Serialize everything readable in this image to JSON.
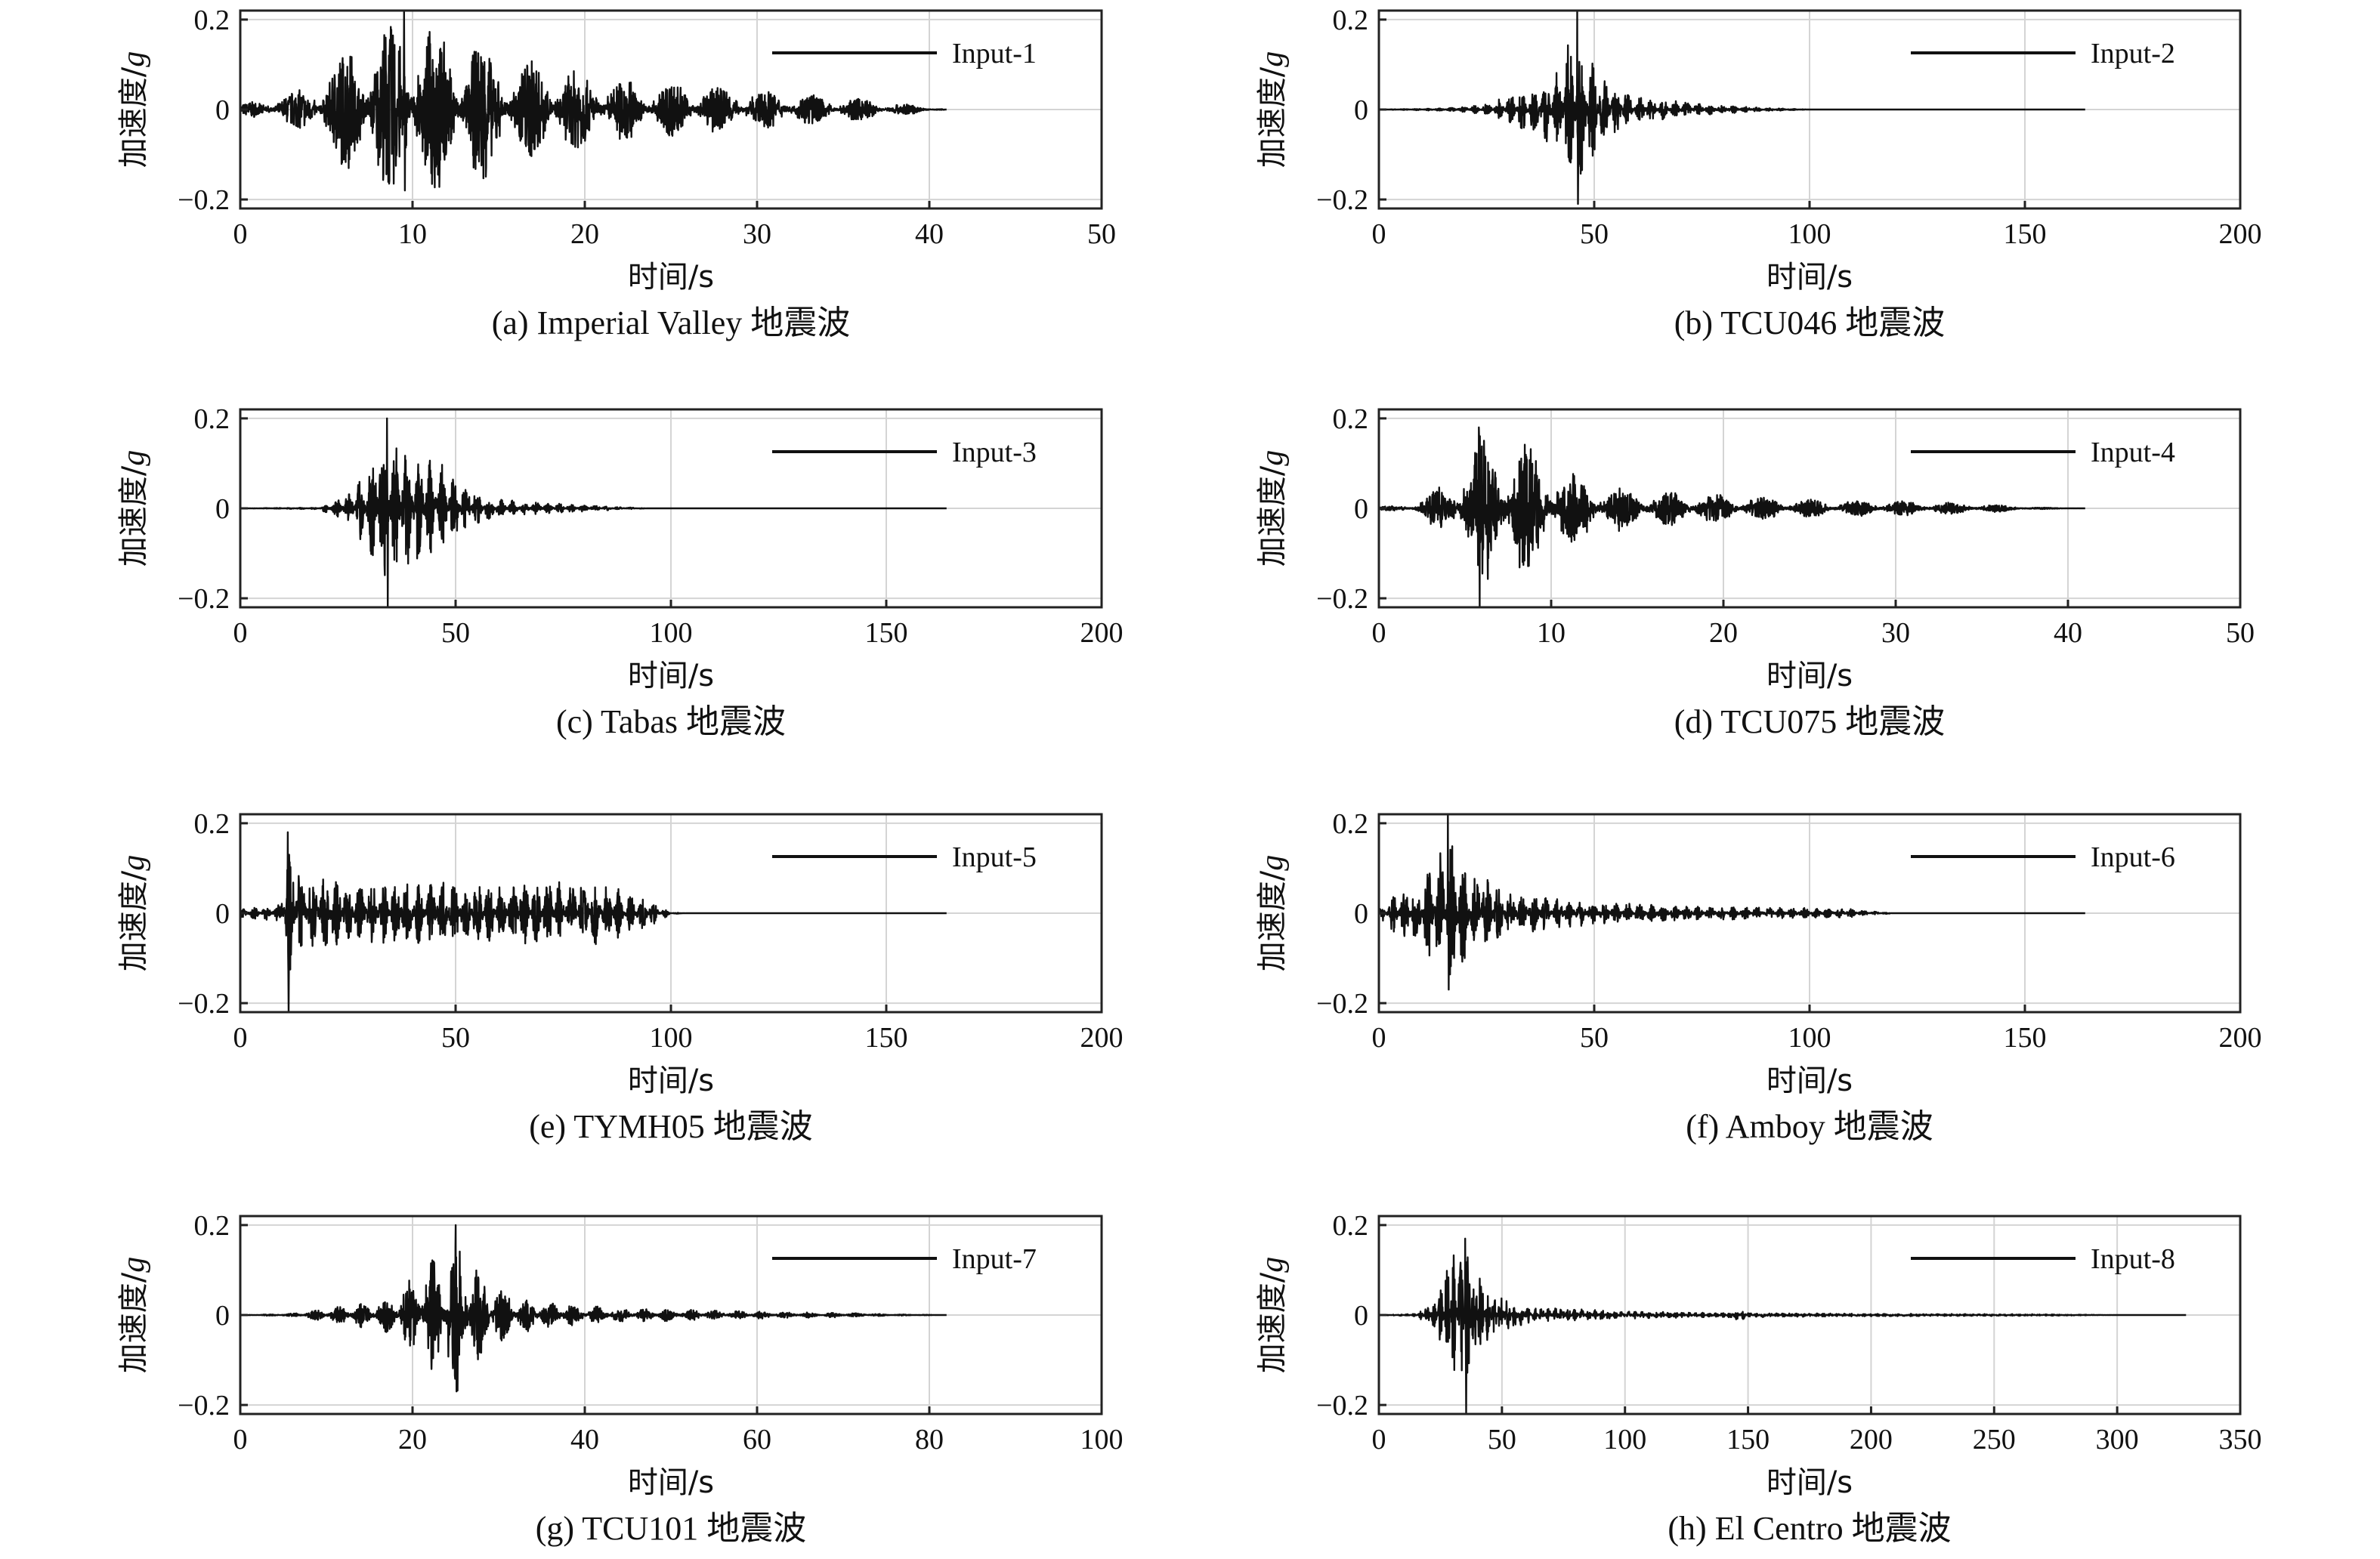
{
  "figure": {
    "y_label_prefix": "加速度/",
    "y_label_unit": "g",
    "x_label": "时间/s"
  },
  "chart_data": [
    {
      "type": "line",
      "caption": "(a) Imperial Valley 地震波",
      "legend": "Input-1",
      "xlabel": "时间/s",
      "ylabel": "加速度/g",
      "xlim": [
        0,
        50
      ],
      "ylim": [
        -0.22,
        0.22
      ],
      "xticks": [
        0,
        10,
        20,
        30,
        40,
        50
      ],
      "yticks": [
        -0.2,
        0,
        0.2
      ],
      "ytick_labels": [
        "−0.2",
        "0",
        "0.2"
      ],
      "grid": true,
      "legend_position": "top-right",
      "series": [
        {
          "duration": 41,
          "peak_pos": 0.22,
          "peak_neg": -0.18,
          "peak_time": 9.5,
          "envelope": [
            [
              0,
              0.01
            ],
            [
              4,
              0.05
            ],
            [
              7,
              0.17
            ],
            [
              10,
              0.2
            ],
            [
              13,
              0.17
            ],
            [
              17,
              0.11
            ],
            [
              22,
              0.07
            ],
            [
              28,
              0.05
            ],
            [
              33,
              0.035
            ],
            [
              37,
              0.02
            ],
            [
              41,
              0.0
            ]
          ]
        }
      ]
    },
    {
      "type": "line",
      "caption": "(b) TCU046 地震波",
      "legend": "Input-2",
      "xlabel": "时间/s",
      "ylabel": "加速度/g",
      "xlim": [
        0,
        200
      ],
      "ylim": [
        -0.22,
        0.22
      ],
      "xticks": [
        0,
        50,
        100,
        150,
        200
      ],
      "yticks": [
        -0.2,
        0,
        0.2
      ],
      "ytick_labels": [
        "−0.2",
        "0",
        "0.2"
      ],
      "grid": true,
      "legend_position": "top-right",
      "series": [
        {
          "duration": 164,
          "peak_pos": 0.22,
          "peak_neg": -0.21,
          "peak_time": 46,
          "envelope": [
            [
              0,
              0.0
            ],
            [
              15,
              0.003
            ],
            [
              25,
              0.012
            ],
            [
              35,
              0.05
            ],
            [
              42,
              0.1
            ],
            [
              46,
              0.2
            ],
            [
              52,
              0.07
            ],
            [
              60,
              0.03
            ],
            [
              75,
              0.012
            ],
            [
              90,
              0.004
            ],
            [
              100,
              0.0
            ],
            [
              164,
              0.0
            ]
          ]
        }
      ]
    },
    {
      "type": "line",
      "caption": "(c) Tabas 地震波",
      "legend": "Input-3",
      "xlabel": "时间/s",
      "ylabel": "加速度/g",
      "xlim": [
        0,
        200
      ],
      "ylim": [
        -0.22,
        0.22
      ],
      "xticks": [
        0,
        50,
        100,
        150,
        200
      ],
      "yticks": [
        -0.2,
        0,
        0.2
      ],
      "ytick_labels": [
        "−0.2",
        "0",
        "0.2"
      ],
      "grid": true,
      "legend_position": "top-right",
      "series": [
        {
          "duration": 164,
          "peak_pos": 0.2,
          "peak_neg": -0.23,
          "peak_time": 34,
          "envelope": [
            [
              0,
              0.0
            ],
            [
              18,
              0.002
            ],
            [
              25,
              0.03
            ],
            [
              30,
              0.1
            ],
            [
              34,
              0.17
            ],
            [
              40,
              0.12
            ],
            [
              46,
              0.11
            ],
            [
              52,
              0.05
            ],
            [
              60,
              0.02
            ],
            [
              75,
              0.01
            ],
            [
              88,
              0.003
            ],
            [
              95,
              0.0
            ],
            [
              164,
              0.0
            ]
          ]
        }
      ]
    },
    {
      "type": "line",
      "caption": "(d) TCU075 地震波",
      "legend": "Input-4",
      "xlabel": "时间/s",
      "ylabel": "加速度/g",
      "xlim": [
        0,
        50
      ],
      "ylim": [
        -0.22,
        0.22
      ],
      "xticks": [
        0,
        10,
        20,
        30,
        40,
        50
      ],
      "yticks": [
        -0.2,
        0,
        0.2
      ],
      "ytick_labels": [
        "−0.2",
        "0",
        "0.2"
      ],
      "grid": true,
      "legend_position": "top-right",
      "series": [
        {
          "duration": 41,
          "peak_pos": 0.18,
          "peak_neg": -0.24,
          "peak_time": 5.8,
          "envelope": [
            [
              0,
              0.003
            ],
            [
              2,
              0.01
            ],
            [
              4,
              0.06
            ],
            [
              6,
              0.17
            ],
            [
              8,
              0.16
            ],
            [
              10,
              0.1
            ],
            [
              14,
              0.05
            ],
            [
              18,
              0.035
            ],
            [
              25,
              0.02
            ],
            [
              32,
              0.015
            ],
            [
              36,
              0.008
            ],
            [
              38,
              0.002
            ],
            [
              41,
              0.0
            ]
          ]
        }
      ]
    },
    {
      "type": "line",
      "caption": "(e) TYMH05 地震波",
      "legend": "Input-5",
      "xlabel": "时间/s",
      "ylabel": "加速度/g",
      "xlim": [
        0,
        200
      ],
      "ylim": [
        -0.22,
        0.22
      ],
      "xticks": [
        0,
        50,
        100,
        150,
        200
      ],
      "yticks": [
        -0.2,
        0,
        0.2
      ],
      "ytick_labels": [
        "−0.2",
        "0",
        "0.2"
      ],
      "grid": true,
      "legend_position": "top-right",
      "series": [
        {
          "duration": 164,
          "peak_pos": 0.18,
          "peak_neg": -0.23,
          "peak_time": 11,
          "envelope": [
            [
              0,
              0.01
            ],
            [
              9,
              0.02
            ],
            [
              11,
              0.17
            ],
            [
              14,
              0.09
            ],
            [
              30,
              0.07
            ],
            [
              60,
              0.07
            ],
            [
              85,
              0.07
            ],
            [
              95,
              0.03
            ],
            [
              100,
              0.002
            ],
            [
              104,
              0.0
            ],
            [
              164,
              0.0
            ]
          ]
        }
      ]
    },
    {
      "type": "line",
      "caption": "(f) Amboy 地震波",
      "legend": "Input-6",
      "xlabel": "时间/s",
      "ylabel": "加速度/g",
      "xlim": [
        0,
        200
      ],
      "ylim": [
        -0.22,
        0.22
      ],
      "xticks": [
        0,
        50,
        100,
        150,
        200
      ],
      "yticks": [
        -0.2,
        0,
        0.2
      ],
      "ytick_labels": [
        "−0.2",
        "0",
        "0.2"
      ],
      "grid": true,
      "legend_position": "top-right",
      "series": [
        {
          "duration": 164,
          "peak_pos": 0.22,
          "peak_neg": -0.17,
          "peak_time": 16,
          "envelope": [
            [
              0,
              0.01
            ],
            [
              3,
              0.04
            ],
            [
              10,
              0.07
            ],
            [
              16,
              0.19
            ],
            [
              22,
              0.1
            ],
            [
              30,
              0.05
            ],
            [
              50,
              0.025
            ],
            [
              80,
              0.015
            ],
            [
              110,
              0.01
            ],
            [
              116,
              0.003
            ],
            [
              120,
              0.0
            ],
            [
              164,
              0.0
            ]
          ]
        }
      ]
    },
    {
      "type": "line",
      "caption": "(g) TCU101 地震波",
      "legend": "Input-7",
      "xlabel": "时间/s",
      "ylabel": "加速度/g",
      "xlim": [
        0,
        100
      ],
      "ylim": [
        -0.22,
        0.22
      ],
      "xticks": [
        0,
        20,
        40,
        60,
        80,
        100
      ],
      "yticks": [
        -0.2,
        0,
        0.2
      ],
      "ytick_labels": [
        "−0.2",
        "0",
        "0.2"
      ],
      "grid": true,
      "legend_position": "top-right",
      "series": [
        {
          "duration": 82,
          "peak_pos": 0.2,
          "peak_neg": -0.17,
          "peak_time": 25,
          "envelope": [
            [
              0,
              0.0
            ],
            [
              6,
              0.003
            ],
            [
              12,
              0.02
            ],
            [
              18,
              0.05
            ],
            [
              22,
              0.12
            ],
            [
              25,
              0.19
            ],
            [
              28,
              0.1
            ],
            [
              32,
              0.04
            ],
            [
              40,
              0.02
            ],
            [
              55,
              0.01
            ],
            [
              70,
              0.005
            ],
            [
              75,
              0.002
            ],
            [
              82,
              0.0
            ]
          ]
        }
      ]
    },
    {
      "type": "line",
      "caption": "(h) El Centro 地震波",
      "legend": "Input-8",
      "xlabel": "时间/s",
      "ylabel": "加速度/g",
      "xlim": [
        0,
        350
      ],
      "ylim": [
        -0.22,
        0.22
      ],
      "xticks": [
        0,
        50,
        100,
        150,
        200,
        250,
        300,
        350
      ],
      "yticks": [
        -0.2,
        0,
        0.2
      ],
      "ytick_labels": [
        "−0.2",
        "0",
        "0.2"
      ],
      "grid": true,
      "legend_position": "top-right",
      "series": [
        {
          "duration": 328,
          "peak_pos": 0.17,
          "peak_neg": -0.22,
          "peak_time": 35,
          "envelope": [
            [
              0,
              0.0
            ],
            [
              15,
              0.003
            ],
            [
              22,
              0.03
            ],
            [
              30,
              0.14
            ],
            [
              36,
              0.15
            ],
            [
              45,
              0.05
            ],
            [
              60,
              0.02
            ],
            [
              100,
              0.008
            ],
            [
              140,
              0.005
            ],
            [
              146,
              0.012
            ],
            [
              152,
              0.005
            ],
            [
              200,
              0.003
            ],
            [
              270,
              0.002
            ],
            [
              300,
              0.0
            ],
            [
              328,
              0.0
            ]
          ]
        }
      ]
    }
  ]
}
